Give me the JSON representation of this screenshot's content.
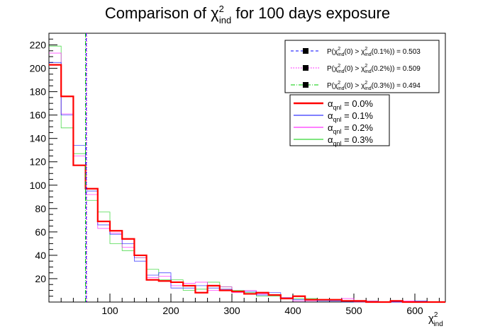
{
  "chart_data": {
    "type": "line",
    "title": "Comparison of χ²ind for 100 days exposure",
    "title_parts": {
      "prefix": "Comparison of ",
      "symbol": "χ",
      "sup": "2",
      "sub": "ind",
      "suffix": "  for 100 days exposure"
    },
    "xlabel": {
      "symbol": "χ",
      "sup": "2",
      "sub": "ind"
    },
    "ylabel": "",
    "xlim": [
      0,
      650
    ],
    "ylim": [
      0,
      230
    ],
    "x_ticks": [
      100,
      200,
      300,
      400,
      500,
      600
    ],
    "y_ticks": [
      20,
      40,
      60,
      80,
      100,
      120,
      140,
      160,
      180,
      200,
      220
    ],
    "bin_edges": [
      0,
      20,
      40,
      60,
      80,
      100,
      120,
      140,
      160,
      180,
      200,
      220,
      240,
      260,
      280,
      300,
      320,
      340,
      360,
      380,
      400,
      420,
      440,
      460,
      480,
      500,
      520,
      540,
      560,
      580,
      600,
      620,
      640,
      650
    ],
    "series": [
      {
        "name": "α_qnl = 0.0%",
        "label": {
          "symbol": "α",
          "sub": "qnl",
          "rest": " = 0.0%"
        },
        "color": "#ff0000",
        "width": 2.2,
        "values": [
          203,
          176,
          117,
          97,
          69,
          61,
          54,
          40,
          19,
          18,
          17,
          14,
          8,
          14,
          10,
          9,
          7,
          8,
          6,
          3,
          5,
          2,
          2,
          2,
          1,
          1,
          0,
          0,
          1,
          0,
          0,
          0,
          0
        ]
      },
      {
        "name": "α_qnl = 0.1%",
        "label": {
          "symbol": "α",
          "sub": "qnl",
          "rest": " = 0.1%"
        },
        "color": "#0000ff",
        "width": 0.8,
        "values": [
          205,
          160,
          134,
          95,
          66,
          58,
          50,
          35,
          23,
          25,
          12,
          12,
          14,
          12,
          11,
          9,
          9,
          6,
          8,
          3,
          2,
          2,
          1,
          1,
          0,
          1,
          0,
          0,
          0,
          0,
          1,
          0,
          0
        ]
      },
      {
        "name": "α_qnl = 0.2%",
        "label": {
          "symbol": "α",
          "sub": "qnl",
          "rest": " = 0.2%"
        },
        "color": "#ff00ff",
        "width": 0.8,
        "values": [
          213,
          161,
          125,
          92,
          63,
          59,
          47,
          38,
          21,
          22,
          14,
          16,
          17,
          10,
          13,
          8,
          10,
          7,
          6,
          4,
          1,
          1,
          2,
          1,
          3,
          0,
          1,
          0,
          0,
          1,
          0,
          0,
          0
        ]
      },
      {
        "name": "α_qnl = 0.3%",
        "label": {
          "symbol": "α",
          "sub": "qnl",
          "rest": " = 0.3%"
        },
        "color": "#00cc00",
        "width": 0.8,
        "values": [
          219,
          149,
          127,
          87,
          77,
          50,
          44,
          38,
          28,
          19,
          19,
          10,
          11,
          17,
          13,
          10,
          8,
          5,
          5,
          4,
          3,
          3,
          2,
          1,
          0,
          0,
          1,
          0,
          0,
          0,
          0,
          0,
          0
        ]
      }
    ],
    "threshold_lines": [
      {
        "label": "P(χ²ind(0) > χ²ind(0.1%)) = 0.503",
        "parts": {
          "pre": "P(",
          "arg1": "(0) > ",
          "arg2": "(0.1%)) = 0.503"
        },
        "color": "#0000ff",
        "style": "dashed",
        "x": 61
      },
      {
        "label": "P(χ²ind(0) > χ²ind(0.2%)) = 0.509",
        "parts": {
          "pre": "P(",
          "arg1": "(0) > ",
          "arg2": "(0.2%)) = 0.509"
        },
        "color": "#ff00ff",
        "style": "dotted",
        "x": 62
      },
      {
        "label": "P(χ²ind(0) > χ²ind(0.3%)) = 0.494",
        "parts": {
          "pre": "P(",
          "arg1": "(0) > ",
          "arg2": "(0.3%)) = 0.494"
        },
        "color": "#00cc00",
        "style": "dashdot",
        "x": 60
      }
    ],
    "grid": false,
    "legend_position": "top-right"
  }
}
